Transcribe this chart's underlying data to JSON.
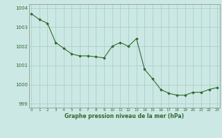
{
  "x": [
    0,
    1,
    2,
    3,
    4,
    5,
    6,
    7,
    8,
    9,
    10,
    11,
    12,
    13,
    14,
    15,
    16,
    17,
    18,
    19,
    20,
    21,
    22,
    23
  ],
  "y": [
    1003.7,
    1003.4,
    1003.2,
    1002.2,
    1001.9,
    1001.6,
    1001.5,
    1001.5,
    1001.45,
    1001.4,
    1002.0,
    1002.2,
    1002.0,
    1002.4,
    1000.8,
    1000.3,
    999.75,
    999.55,
    999.45,
    999.45,
    999.6,
    999.6,
    999.75,
    999.85
  ],
  "line_color": "#2d6a2d",
  "marker_color": "#2d6a2d",
  "bg_color": "#cce8e4",
  "grid_color": "#aacfca",
  "plot_bg": "#cce8e4",
  "xlabel": "Graphe pression niveau de la mer (hPa)",
  "xlabel_color": "#2d6a2d",
  "tick_color": "#2d6a2d",
  "ylim": [
    998.8,
    1004.2
  ],
  "yticks": [
    999,
    1000,
    1001,
    1002,
    1003,
    1004
  ],
  "xticks": [
    0,
    1,
    2,
    3,
    4,
    5,
    6,
    7,
    8,
    9,
    10,
    11,
    12,
    13,
    14,
    15,
    16,
    17,
    18,
    19,
    20,
    21,
    22,
    23
  ]
}
